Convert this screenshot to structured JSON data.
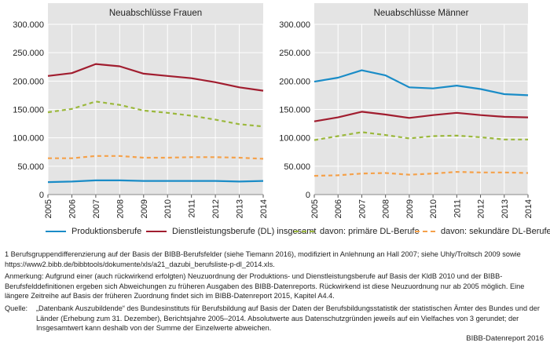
{
  "chart_data": [
    {
      "type": "line",
      "title": "Neuabschlüsse Frauen",
      "x": [
        "2005",
        "2006",
        "2007",
        "2008",
        "2009",
        "2010",
        "2011",
        "2012",
        "2013",
        "2014"
      ],
      "ylim": [
        0,
        300000
      ],
      "yticks": [
        "0",
        "50.000",
        "100.000",
        "150.000",
        "200.000",
        "250.000",
        "300.000"
      ],
      "grid": true,
      "series": [
        {
          "name": "Produktionsberufe",
          "color": "#1a8cc7",
          "dash": false,
          "values": [
            22000,
            23000,
            25000,
            25000,
            24000,
            24000,
            24000,
            24000,
            23000,
            24000
          ]
        },
        {
          "name": "Dienstleistungsberufe (DL) insgesamt",
          "color": "#a11d2f",
          "dash": false,
          "values": [
            209000,
            214000,
            230000,
            226000,
            213000,
            209000,
            205000,
            198000,
            189000,
            183000
          ]
        },
        {
          "name": "davon: primäre DL-Berufe",
          "color": "#9bb83c",
          "dash": true,
          "values": [
            145000,
            151000,
            164000,
            158000,
            148000,
            144000,
            139000,
            132000,
            124000,
            120000
          ]
        },
        {
          "name": "davon: sekundäre DL-Berufe",
          "color": "#f5a14a",
          "dash": true,
          "values": [
            64000,
            64000,
            68000,
            68000,
            65000,
            65000,
            66000,
            66000,
            65000,
            63000
          ]
        }
      ]
    },
    {
      "type": "line",
      "title": "Neuabschlüsse Männer",
      "x": [
        "2005",
        "2006",
        "2007",
        "2008",
        "2009",
        "2010",
        "2011",
        "2012",
        "2013",
        "2014"
      ],
      "ylim": [
        0,
        300000
      ],
      "yticks": [
        "0",
        "50.000",
        "100.000",
        "150.000",
        "200.000",
        "250.000",
        "300.000"
      ],
      "grid": true,
      "series": [
        {
          "name": "Produktionsberufe",
          "color": "#1a8cc7",
          "dash": false,
          "values": [
            199000,
            206000,
            219000,
            210000,
            189000,
            187000,
            192000,
            186000,
            177000,
            175000
          ]
        },
        {
          "name": "Dienstleistungsberufe (DL) insgesamt",
          "color": "#a11d2f",
          "dash": false,
          "values": [
            129000,
            136000,
            146000,
            141000,
            135000,
            140000,
            144000,
            140000,
            137000,
            136000
          ]
        },
        {
          "name": "davon: primäre DL-Berufe",
          "color": "#9bb83c",
          "dash": true,
          "values": [
            96000,
            103000,
            110000,
            105000,
            99000,
            103000,
            104000,
            101000,
            97000,
            97000
          ]
        },
        {
          "name": "davon: sekundäre DL-Berufe",
          "color": "#f5a14a",
          "dash": true,
          "values": [
            33000,
            34000,
            37000,
            38000,
            35000,
            37000,
            40000,
            39000,
            39000,
            38000
          ]
        }
      ]
    }
  ],
  "legend": [
    {
      "label": "Produktionsberufe",
      "color": "#1a8cc7",
      "dash": false
    },
    {
      "label": "Dienstleistungsberufe (DL) insgesamt",
      "color": "#a11d2f",
      "dash": false
    },
    {
      "label": "davon: primäre DL-Berufe",
      "color": "#9bb83c",
      "dash": true
    },
    {
      "label": "davon: sekundäre DL-Berufe",
      "color": "#f5a14a",
      "dash": true
    }
  ],
  "notes": {
    "footnote": "1 Berufsgruppendifferenzierung auf der Basis der BIBB-Berufsfelder (siehe Tiemann 2016), modifiziert in Anlehnung an Hall 2007; siehe Uhly/Troltsch 2009 sowie https://www2.bibb.de/bibbtools/dokumente/xls/a21_dazubi_berufsliste-p-dl_2014.xls.",
    "anmerkung": "Anmerkung: Aufgrund einer (auch rückwirkend erfolgten) Neuzuordnung der Produktions- und Dienstleistungsberufe auf Basis der KldB 2010 und der BIBB-Berufsfelddefinitionen ergeben sich Abweichungen zu früheren Ausgaben des BIBB-Datenreports. Rückwirkend ist diese Neuzuordnung nur ab 2005 möglich. Eine längere Zeitreihe auf Basis der früheren Zuordnung findet sich im BIBB-Datenreport 2015, Kapitel A4.4.",
    "quelle_label": "Quelle:",
    "quelle": "„Datenbank Auszubildende“ des Bundesinstituts für Berufsbildung auf Basis der Daten der Berufsbildungsstatistik der statistischen Ämter des Bundes und der Länder (Erhebung zum 31. Dezember), Berichtsjahre 2005–2014. Absolutwerte aus Datenschutzgründen jeweils auf ein Vielfaches von 3 gerundet; der Insgesamtwert kann deshalb von der Summe der Einzelwerte abweichen.",
    "credit": "BIBB-Datenreport 2016"
  }
}
